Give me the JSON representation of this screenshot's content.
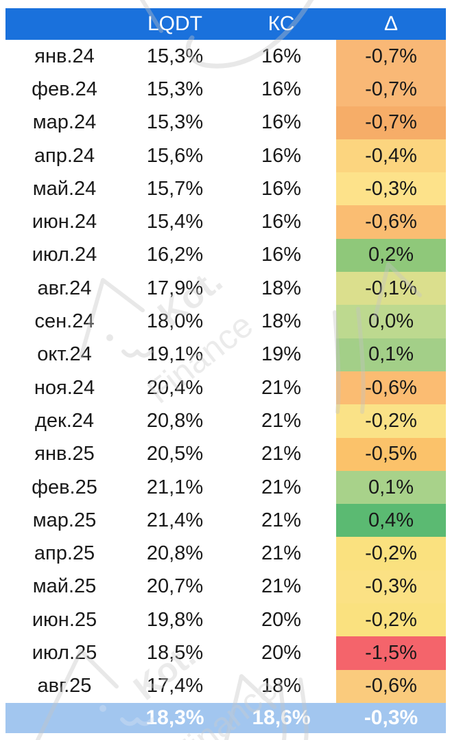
{
  "chart_data": {
    "type": "table",
    "columns": [
      "",
      "LQDT",
      "КС",
      "Δ"
    ],
    "rows": [
      {
        "month": "янв.24",
        "lqdt": "15,3%",
        "kc": "16%",
        "delta": "-0,7%",
        "delta_color": "#F9B876"
      },
      {
        "month": "фев.24",
        "lqdt": "15,3%",
        "kc": "16%",
        "delta": "-0,7%",
        "delta_color": "#F9B876"
      },
      {
        "month": "мар.24",
        "lqdt": "15,3%",
        "kc": "16%",
        "delta": "-0,7%",
        "delta_color": "#F6AD68"
      },
      {
        "month": "апр.24",
        "lqdt": "15,6%",
        "kc": "16%",
        "delta": "-0,4%",
        "delta_color": "#FCD57F"
      },
      {
        "month": "май.24",
        "lqdt": "15,7%",
        "kc": "16%",
        "delta": "-0,3%",
        "delta_color": "#FDE28A"
      },
      {
        "month": "июн.24",
        "lqdt": "15,4%",
        "kc": "16%",
        "delta": "-0,6%",
        "delta_color": "#FABD72"
      },
      {
        "month": "июл.24",
        "lqdt": "16,2%",
        "kc": "16%",
        "delta": "0,2%",
        "delta_color": "#8FC87A"
      },
      {
        "month": "авг.24",
        "lqdt": "17,9%",
        "kc": "18%",
        "delta": "-0,1%",
        "delta_color": "#DBDF8D"
      },
      {
        "month": "сен.24",
        "lqdt": "18,0%",
        "kc": "18%",
        "delta": "0,0%",
        "delta_color": "#BDD98F"
      },
      {
        "month": "окт.24",
        "lqdt": "19,1%",
        "kc": "19%",
        "delta": "0,1%",
        "delta_color": "#A3CF88"
      },
      {
        "month": "ноя.24",
        "lqdt": "20,4%",
        "kc": "21%",
        "delta": "-0,6%",
        "delta_color": "#FBBC72"
      },
      {
        "month": "дек.24",
        "lqdt": "20,8%",
        "kc": "21%",
        "delta": "-0,2%",
        "delta_color": "#FAE287"
      },
      {
        "month": "янв.25",
        "lqdt": "20,5%",
        "kc": "21%",
        "delta": "-0,5%",
        "delta_color": "#FBC26A"
      },
      {
        "month": "фев.25",
        "lqdt": "21,1%",
        "kc": "21%",
        "delta": "0,1%",
        "delta_color": "#A8D28A"
      },
      {
        "month": "мар.25",
        "lqdt": "21,4%",
        "kc": "21%",
        "delta": "0,4%",
        "delta_color": "#5BBA72"
      },
      {
        "month": "апр.25",
        "lqdt": "20,8%",
        "kc": "21%",
        "delta": "-0,2%",
        "delta_color": "#FAE17F"
      },
      {
        "month": "май.25",
        "lqdt": "20,7%",
        "kc": "21%",
        "delta": "-0,3%",
        "delta_color": "#FBE184"
      },
      {
        "month": "июн.25",
        "lqdt": "19,8%",
        "kc": "20%",
        "delta": "-0,2%",
        "delta_color": "#FAE17F"
      },
      {
        "month": "июл.25",
        "lqdt": "18,5%",
        "kc": "20%",
        "delta": "-1,5%",
        "delta_color": "#F4646B"
      },
      {
        "month": "авг.25",
        "lqdt": "17,4%",
        "kc": "18%",
        "delta": "-0,6%",
        "delta_color": "#FACB7D"
      }
    ],
    "footer": {
      "lqdt": "18,3%",
      "kc": "18,6%",
      "delta": "-0,3%"
    }
  },
  "colors": {
    "header_bg": "#1A71DC",
    "footer_bg": "#A2C6EF",
    "body_text": "#191919",
    "header_text": "#FFFFFF",
    "watermark": "#C4C4C4"
  },
  "watermark": {
    "brand": "Kot.",
    "suffix": "Finance"
  }
}
